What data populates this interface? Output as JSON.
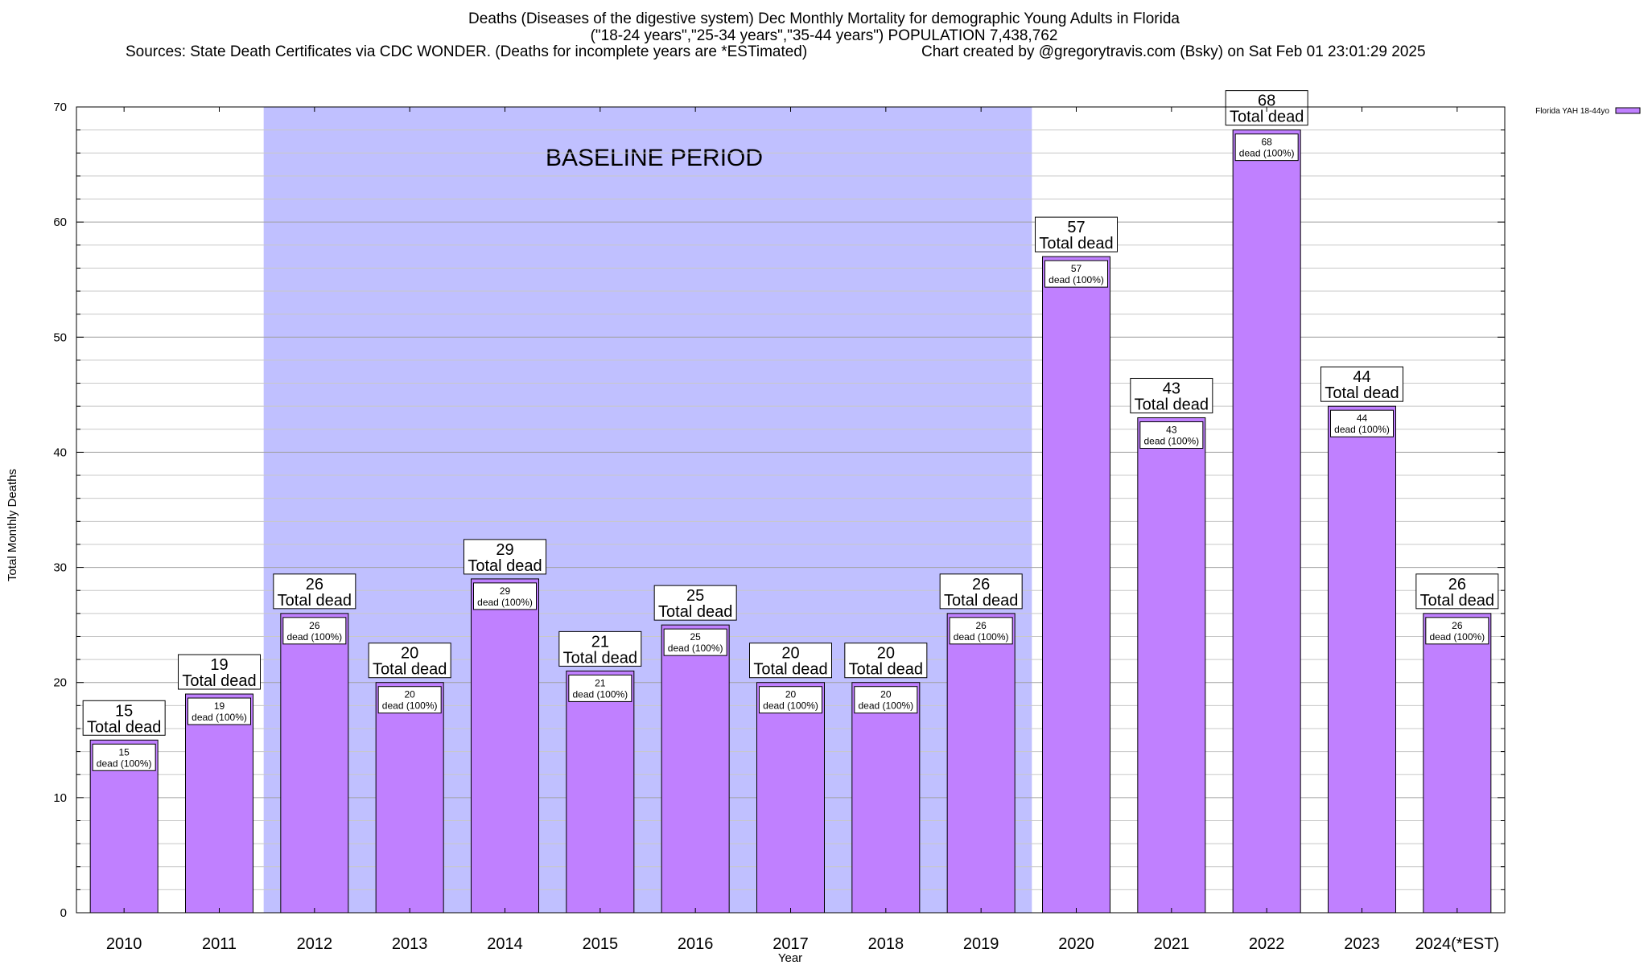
{
  "header": {
    "title_line1": "Deaths (Diseases of the digestive system) Dec Monthly Mortality for demographic Young Adults in Florida",
    "title_line2": "(\"18-24 years\",\"25-34 years\",\"35-44 years\") POPULATION 7,438,762",
    "sources": "Sources: State Death Certificates via CDC WONDER. (Deaths for incomplete years are *ESTimated)",
    "credit": "Chart created by @gregorytravis.com (Bsky) on Sat Feb 01 23:01:29 2025"
  },
  "chart_data": {
    "type": "bar",
    "xlabel": "Year",
    "ylabel": "Total Monthly Deaths",
    "ylim": [
      0,
      70
    ],
    "y_ticks": [
      0,
      10,
      20,
      30,
      40,
      50,
      60,
      70
    ],
    "grid": true,
    "legend_position": "top-right",
    "categories": [
      "2010",
      "2011",
      "2012",
      "2013",
      "2014",
      "2015",
      "2016",
      "2017",
      "2018",
      "2019",
      "2020",
      "2021",
      "2022",
      "2023",
      "2024(*EST)"
    ],
    "series": [
      {
        "name": "Florida YAH 18-44yo",
        "color": "#c080ff",
        "values": [
          15,
          19,
          26,
          20,
          29,
          21,
          25,
          20,
          20,
          26,
          57,
          43,
          68,
          44,
          26
        ]
      }
    ],
    "total_label": "Total dead",
    "inner_label": "dead (100%)",
    "shaded_region": {
      "label": "BASELINE PERIOD",
      "from_category": "2012",
      "to_category": "2019",
      "color": "#c0c0ff"
    }
  }
}
